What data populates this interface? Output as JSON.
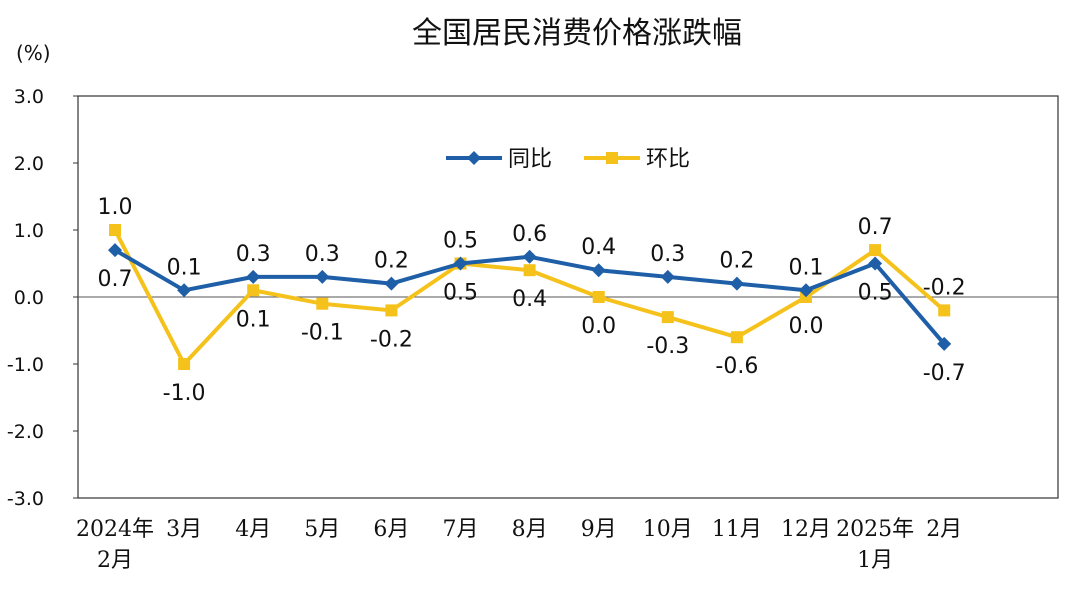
{
  "chart_data": {
    "type": "line",
    "title": "全国居民消费价格涨跌幅",
    "unit_label": "(%)",
    "ylim": [
      -3.0,
      3.0
    ],
    "yticks": [
      "3.0",
      "2.0",
      "1.0",
      "0.0",
      "-1.0",
      "-2.0",
      "-3.0"
    ],
    "ytick_values": [
      3,
      2,
      1,
      0,
      -1,
      -2,
      -3
    ],
    "categories": [
      [
        "2024年",
        "2月"
      ],
      [
        "3月"
      ],
      [
        "4月"
      ],
      [
        "5月"
      ],
      [
        "6月"
      ],
      [
        "7月"
      ],
      [
        "8月"
      ],
      [
        "9月"
      ],
      [
        "10月"
      ],
      [
        "11月"
      ],
      [
        "12月"
      ],
      [
        "2025年",
        "1月"
      ],
      [
        "2月"
      ]
    ],
    "legend_position": "top-center",
    "grid": false,
    "series": [
      {
        "name": "同比",
        "color": "#1f5fa8",
        "marker": "diamond",
        "values": [
          0.7,
          0.1,
          0.3,
          0.3,
          0.2,
          0.5,
          0.6,
          0.4,
          0.3,
          0.2,
          0.1,
          0.5,
          -0.7
        ],
        "labels": [
          "0.7",
          "0.1",
          "0.3",
          "0.3",
          "0.2",
          "0.5",
          "0.6",
          "0.4",
          "0.3",
          "0.2",
          "0.1",
          "0.5",
          "-0.7"
        ]
      },
      {
        "name": "环比",
        "color": "#f5c21b",
        "marker": "square",
        "values": [
          1.0,
          -1.0,
          0.1,
          -0.1,
          -0.2,
          0.5,
          0.4,
          0.0,
          -0.3,
          -0.6,
          0.0,
          0.7,
          -0.2
        ],
        "labels": [
          "1.0",
          "-1.0",
          "0.1",
          "-0.1",
          "-0.2",
          "0.5",
          "0.4",
          "0.0",
          "-0.3",
          "-0.6",
          "0.0",
          "0.7",
          "-0.2"
        ]
      }
    ]
  }
}
